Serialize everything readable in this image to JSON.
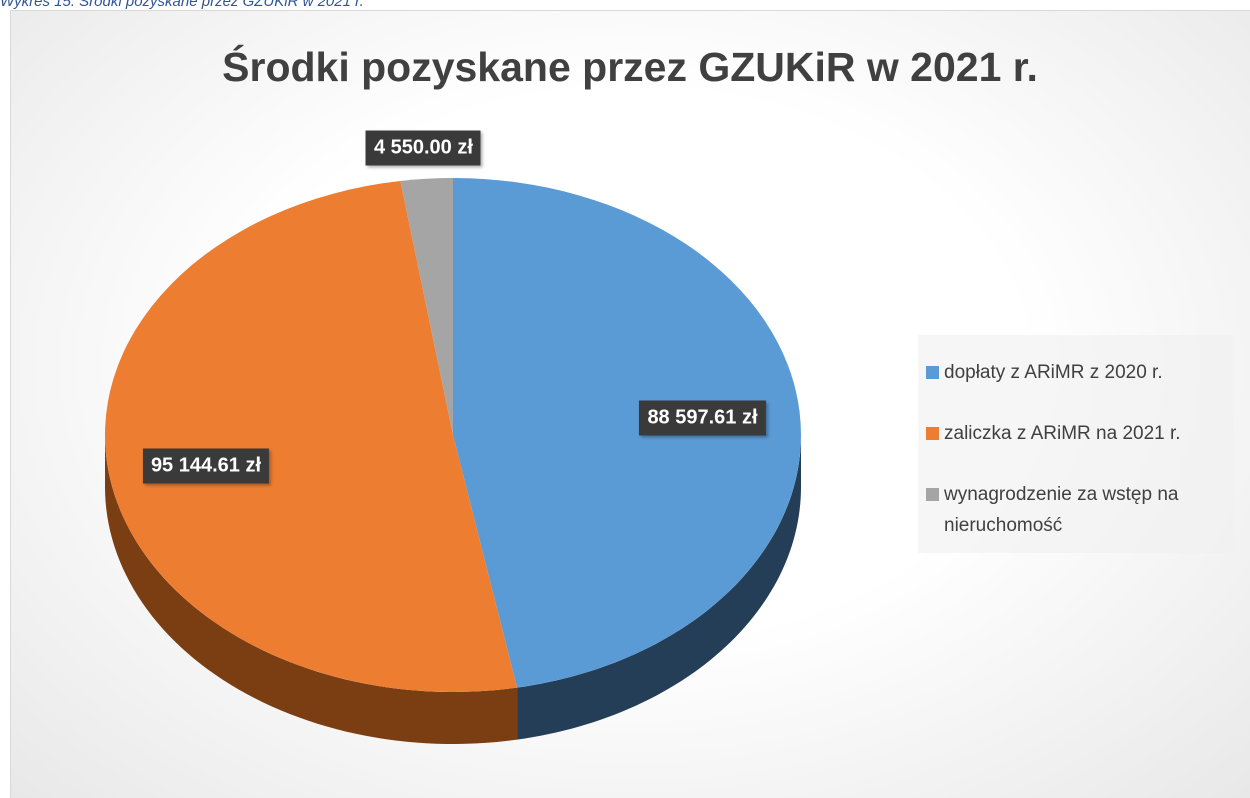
{
  "caption": "Wykres 15. Środki pozyskane przez GZUKiR w 2021 r.",
  "chart_data": {
    "type": "pie",
    "title": "Środki pozyskane przez GZUKiR w 2021 r.",
    "categories": [
      "dopłaty z ARiMR z 2020 r.",
      "zaliczka z ARiMR na 2021 r.",
      "wynagrodzenie za wstęp na nieruchomość"
    ],
    "values": [
      88597.61,
      95144.61,
      4550.0
    ],
    "value_labels": [
      "88 597.61 zł",
      "95 144.61 zł",
      "4 550.00 zł"
    ],
    "colors": [
      "#5b9bd5",
      "#ed7d31",
      "#a5a5a5"
    ],
    "side_colors": [
      "#243e58",
      "#7a3e12",
      "#5a5a5a"
    ],
    "legend": "right"
  }
}
